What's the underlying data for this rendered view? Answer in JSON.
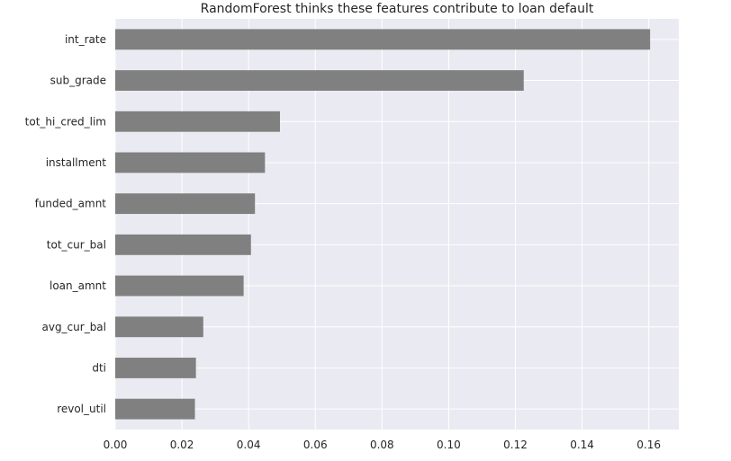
{
  "chart_data": {
    "type": "bar",
    "orientation": "horizontal",
    "title": "RandomForest thinks these features contribute to loan default",
    "xlabel": "",
    "ylabel": "",
    "categories": [
      "int_rate",
      "sub_grade",
      "tot_hi_cred_lim",
      "installment",
      "funded_amnt",
      "tot_cur_bal",
      "loan_amnt",
      "avg_cur_bal",
      "dti",
      "revol_util"
    ],
    "values": [
      0.1604,
      0.1225,
      0.0494,
      0.0449,
      0.0419,
      0.0407,
      0.0385,
      0.0264,
      0.0242,
      0.0239
    ],
    "xlim": [
      0,
      0.169
    ],
    "xticks": [
      "0.00",
      "0.02",
      "0.04",
      "0.06",
      "0.08",
      "0.10",
      "0.12",
      "0.14",
      "0.16"
    ],
    "grid": true,
    "legend": "none",
    "colors": {
      "bar": "#808080",
      "plot_background": "#EAEAF2",
      "grid": "#FFFFFF",
      "text": "#262626"
    }
  }
}
